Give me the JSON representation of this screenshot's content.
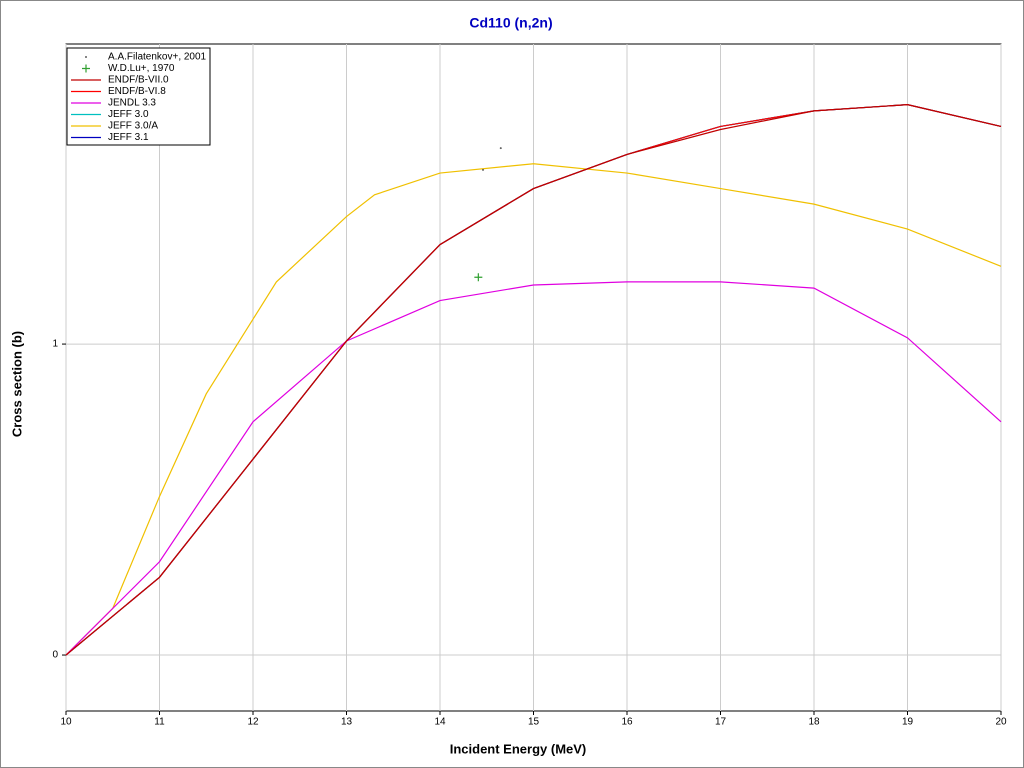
{
  "chart_data": {
    "type": "line",
    "title": "Cd110 (n,2n)",
    "x_label": "Incident Energy (MeV)",
    "y_label": "Cross section (b)",
    "xlim": [
      10,
      20
    ],
    "ylim": [
      -0.18,
      1.965
    ],
    "xticks": [
      10,
      11,
      12,
      13,
      14,
      15,
      16,
      17,
      18,
      19,
      20
    ],
    "yticks": [
      0,
      1
    ],
    "grid": true,
    "legend": "upper left",
    "series": [
      {
        "name": "A.A.Filatenkov+, 2001",
        "color": "#606060",
        "style": "dot",
        "x": [
          14.46,
          14.65
        ],
        "values": [
          1.56,
          1.63
        ]
      },
      {
        "name": "W.D.Lu+, 1970",
        "color": "#30a030",
        "style": "plus",
        "x": [
          14.41
        ],
        "values": [
          1.215
        ]
      },
      {
        "name": "ENDF/B-VII.0",
        "color": "#c00000",
        "style": "line",
        "x": [
          10,
          11,
          12,
          13,
          14,
          15,
          16,
          17,
          18,
          19,
          20
        ],
        "values": [
          0,
          0.25,
          0.63,
          1.01,
          1.32,
          1.5,
          1.61,
          1.69,
          1.75,
          1.77,
          1.7
        ]
      },
      {
        "name": "ENDF/B-VI.8",
        "color": "#ff0000",
        "style": "line",
        "x": [
          10,
          11,
          12,
          13,
          14,
          15,
          16,
          17,
          18,
          19,
          20
        ],
        "values": [
          0,
          0.25,
          0.63,
          1.01,
          1.32,
          1.5,
          1.61,
          1.7,
          1.75,
          1.77,
          1.7
        ]
      },
      {
        "name": "JENDL 3.3",
        "color": "#e000e0",
        "style": "line",
        "x": [
          10,
          11,
          12,
          13,
          14,
          15,
          16,
          17,
          18,
          19,
          20
        ],
        "values": [
          0,
          0.3,
          0.75,
          1.01,
          1.14,
          1.19,
          1.2,
          1.2,
          1.18,
          1.02,
          0.75
        ]
      },
      {
        "name": "JEFF 3.0",
        "color": "#00c0c0",
        "style": "line",
        "x": [
          10,
          11,
          12,
          13,
          14,
          15,
          16,
          17,
          18,
          19,
          20
        ],
        "values": [
          0,
          0.25,
          0.63,
          1.01,
          1.32,
          1.5,
          1.61,
          1.7,
          1.75,
          1.77,
          1.7
        ]
      },
      {
        "name": "JEFF 3.0/A",
        "color": "#f0c000",
        "style": "line",
        "x": [
          10,
          10.5,
          11,
          11.5,
          12,
          12.25,
          13,
          13.3,
          14,
          15,
          16,
          17,
          18,
          19,
          20
        ],
        "values": [
          0,
          0.15,
          0.51,
          0.84,
          1.08,
          1.2,
          1.41,
          1.48,
          1.55,
          1.58,
          1.55,
          1.5,
          1.45,
          1.37,
          1.25
        ]
      },
      {
        "name": "JEFF 3.1",
        "color": "#0000c0",
        "style": "line",
        "x": [
          10,
          11,
          12,
          13,
          14,
          15,
          16,
          17,
          18,
          19,
          20
        ],
        "values": [
          0,
          0.25,
          0.63,
          1.01,
          1.32,
          1.5,
          1.61,
          1.7,
          1.75,
          1.77,
          1.7
        ]
      }
    ]
  }
}
